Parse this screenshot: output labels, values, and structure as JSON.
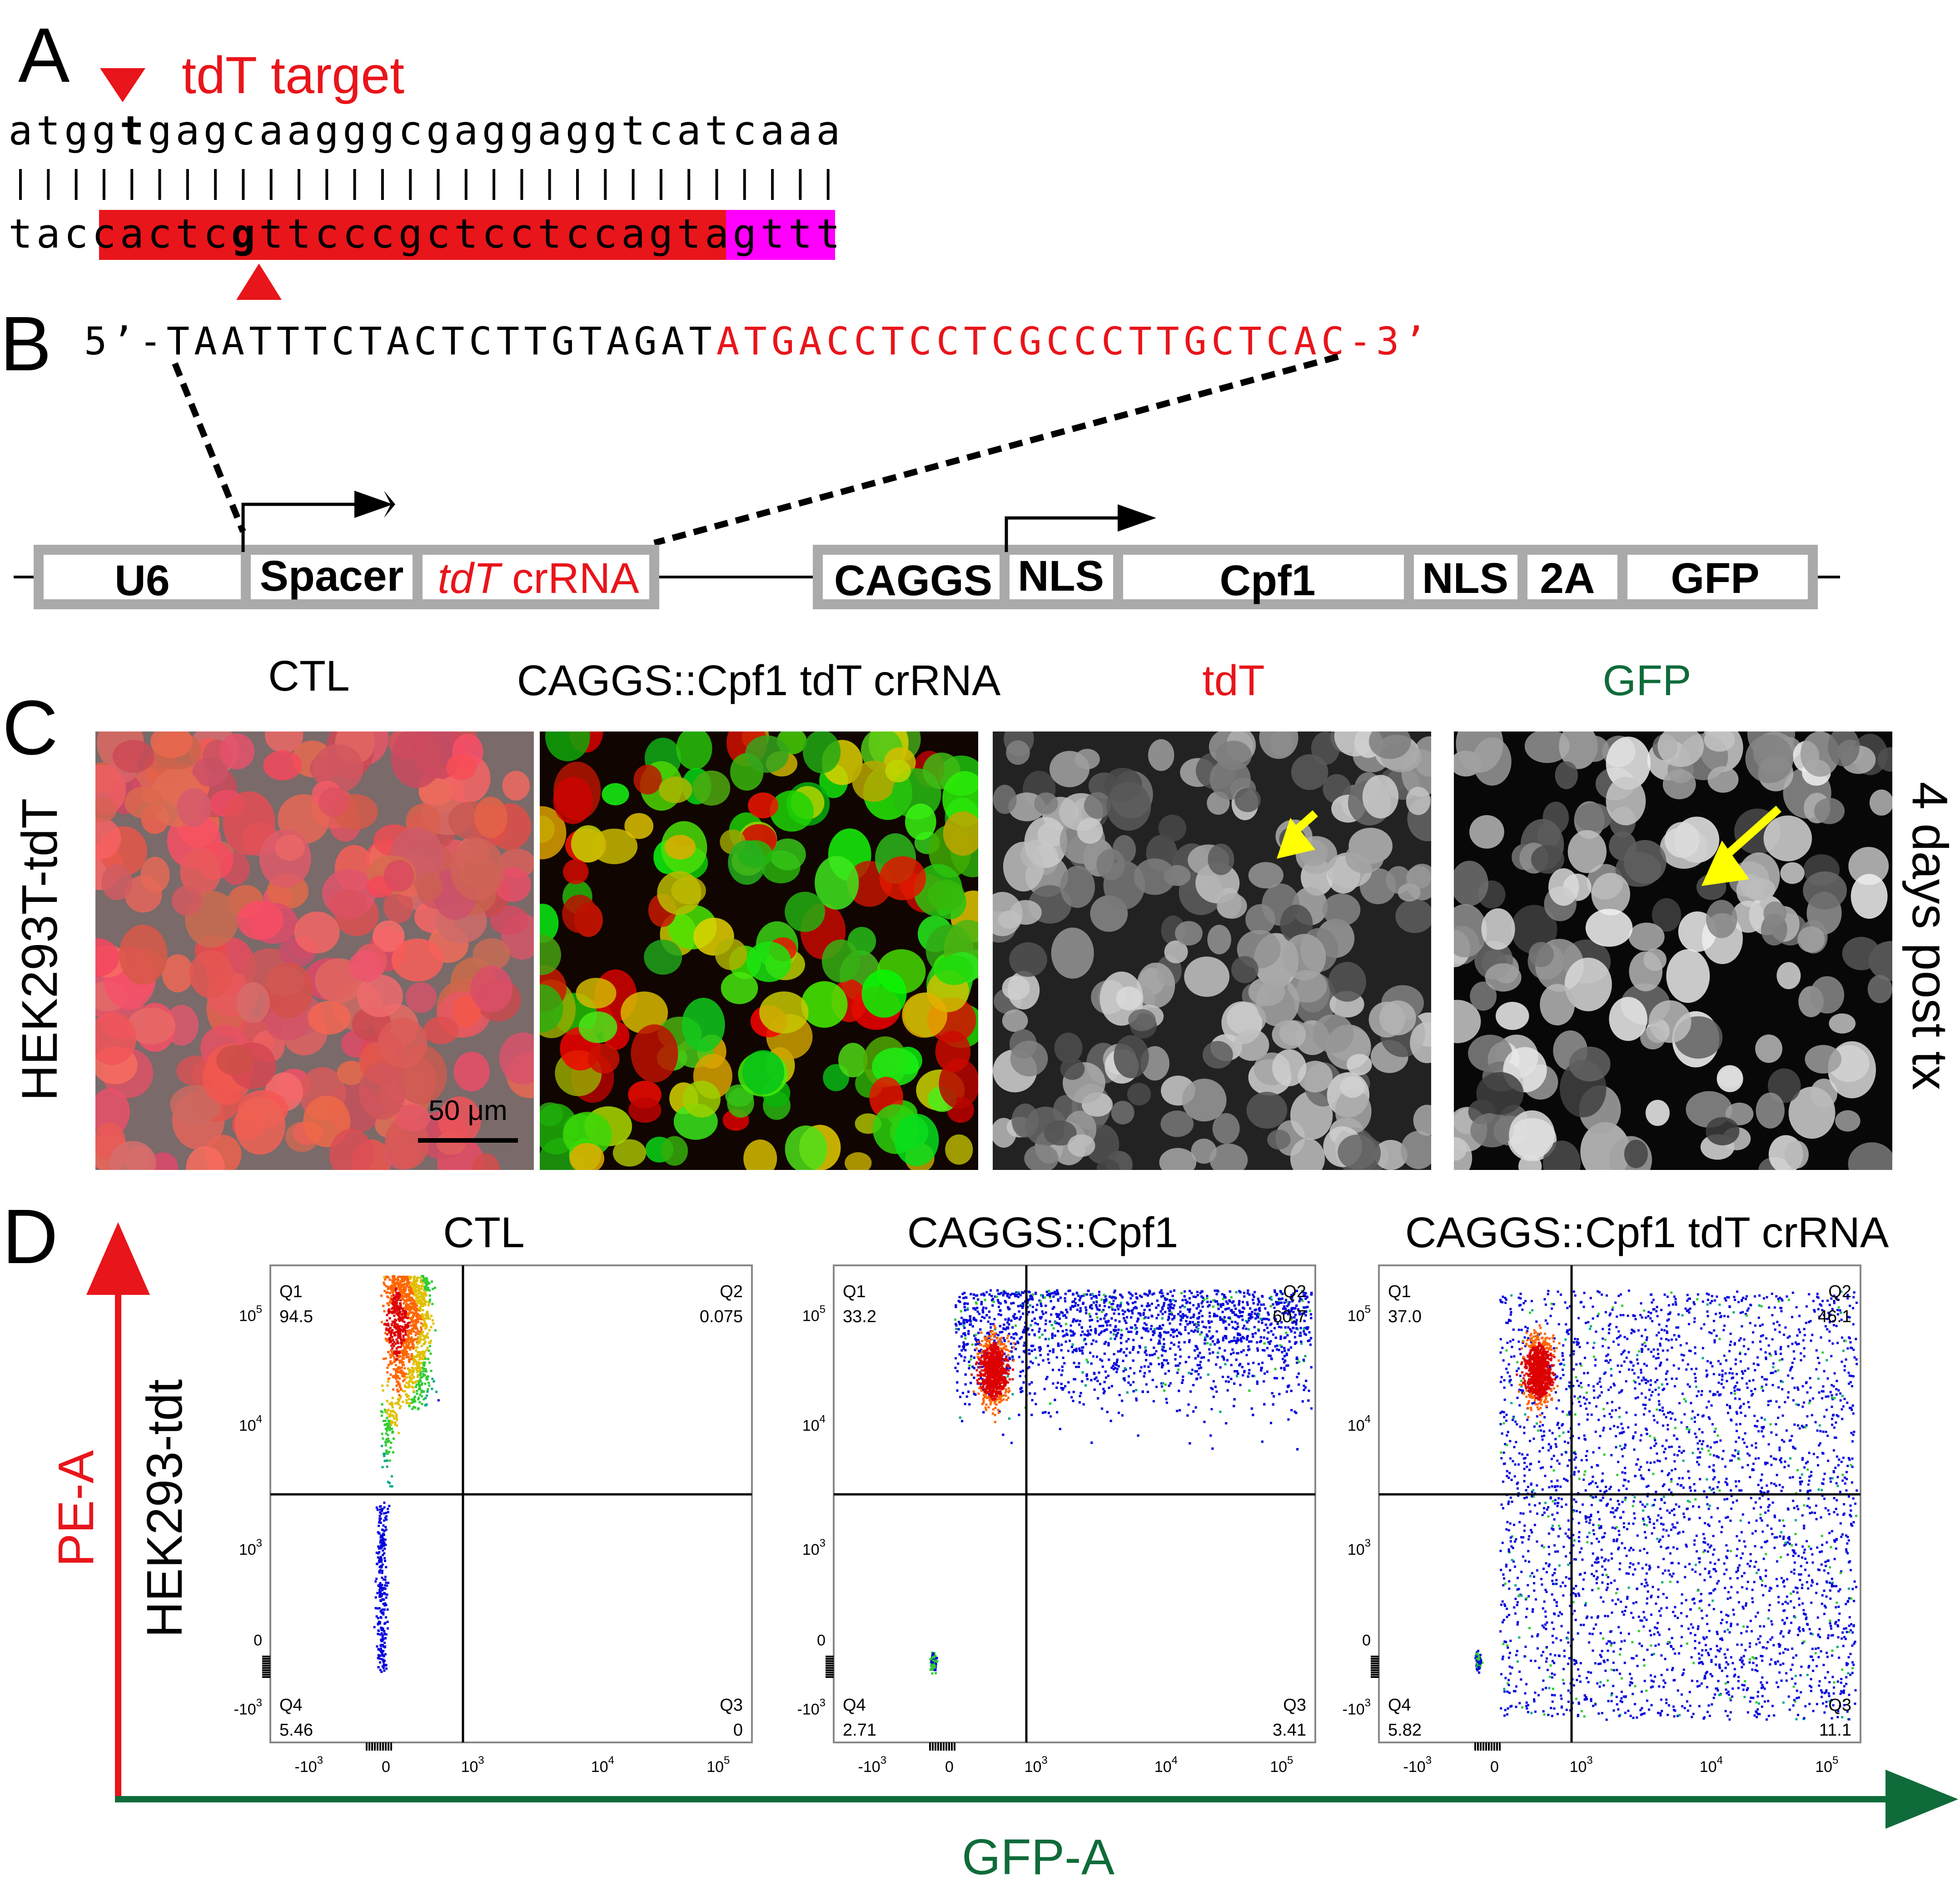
{
  "panel_letters": {
    "a": "A",
    "b": "B",
    "c": "C",
    "d": "D"
  },
  "colors": {
    "red": "#e8151b",
    "magenta": "#ff00ff",
    "green": "#0f6b3a",
    "yellow": "#ffff00",
    "box_gray": "#aaaaaa"
  },
  "panel_a": {
    "target_label": "tdT target",
    "top_strand": "atggtgagcaagggcgaggaggtcatcaaa",
    "top_bold_index": 4,
    "bottom_prefix": "tac",
    "bottom_red_part1": "cactc",
    "bottom_bold": "g",
    "bottom_red_part2": "ttcccgctcctccagta",
    "bottom_magenta": "gttt",
    "pair_count": 30
  },
  "panel_b": {
    "seq_black": "5’-TAATTTCTACTCTTGTAGAT",
    "seq_red": "ATGACCTCCTCGCCCTTGCTCAC-3’"
  },
  "construct": {
    "left": [
      "U6",
      "Spacer"
    ],
    "crrna_italic": "tdT",
    "crrna_rest": " crRNA",
    "right": [
      "CAGGS",
      "NLS",
      "Cpf1",
      "NLS",
      "2A",
      "GFP"
    ]
  },
  "panel_c": {
    "titles": [
      "CTL",
      "CAGGS::Cpf1 tdT crRNA",
      "tdT",
      "GFP"
    ],
    "row_label": "HEK293T-tdT",
    "side_label": "4 days post tx",
    "scale_bar": "50 μm",
    "arrow_color": "yellow"
  },
  "panel_d": {
    "y_axis_label": "PE-A",
    "x_axis_label": "GFP-A",
    "row_label": "HEK293-tdt",
    "y_ticks": [
      "10^5",
      "10^4",
      "10^3",
      "0",
      "-10^3"
    ],
    "x_ticks": [
      "-10^3",
      "0",
      "10^3",
      "10^4",
      "10^5"
    ],
    "plots": [
      {
        "title": "CTL",
        "q1": "94.5",
        "q2": "0.075",
        "q3": "0",
        "q4": "5.46"
      },
      {
        "title": "CAGGS::Cpf1",
        "q1": "33.2",
        "q2": "60.7",
        "q3": "3.41",
        "q4": "2.71"
      },
      {
        "title": "CAGGS::Cpf1 tdT crRNA",
        "q1": "37.0",
        "q2": "46.1",
        "q3": "11.1",
        "q4": "5.82"
      }
    ],
    "quadrant_names": [
      "Q1",
      "Q2",
      "Q3",
      "Q4"
    ]
  }
}
